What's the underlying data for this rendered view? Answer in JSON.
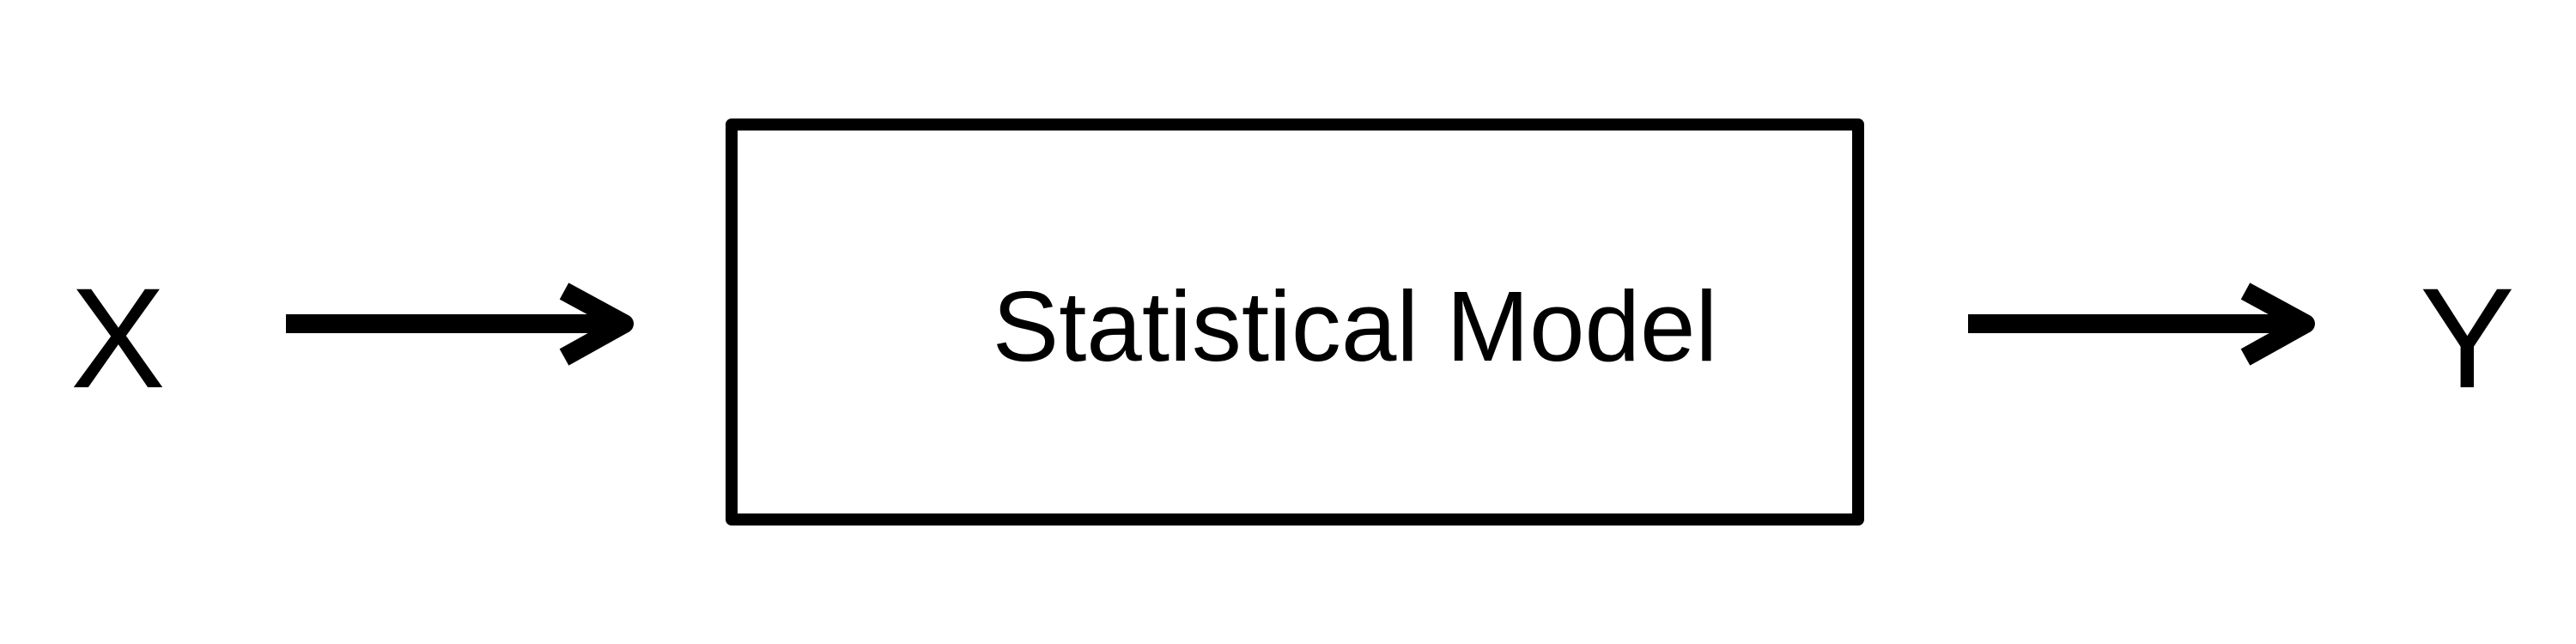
{
  "diagram": {
    "input_label": "X",
    "output_label": "Y",
    "model_label": "Statistical Model",
    "colors": {
      "stroke": "#000000",
      "background": "#ffffff"
    }
  }
}
